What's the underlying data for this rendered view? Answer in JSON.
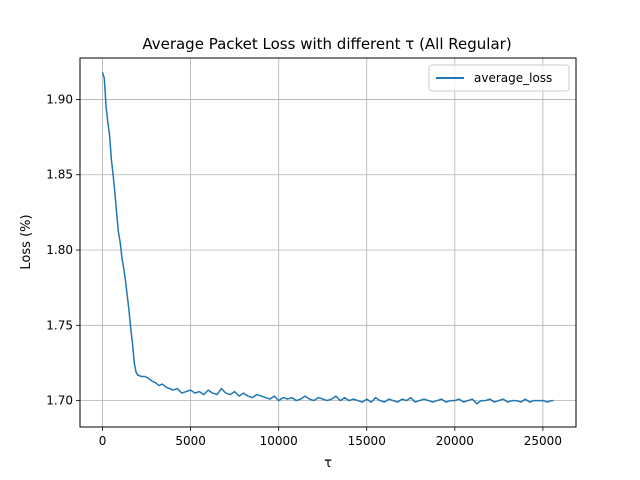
{
  "chart_data": {
    "type": "line",
    "title": "Average Packet Loss with different τ (All Regular)",
    "xlabel": "τ",
    "ylabel": "Loss (%)",
    "xlim": [
      -1280,
      26880
    ],
    "ylim": [
      1.6825,
      1.9275
    ],
    "x_ticks": [
      0,
      5000,
      10000,
      15000,
      20000,
      25000
    ],
    "x_tick_labels": [
      "0",
      "5000",
      "10000",
      "15000",
      "20000",
      "25000"
    ],
    "y_ticks": [
      1.7,
      1.75,
      1.8,
      1.85,
      1.9
    ],
    "y_tick_labels": [
      "1.70",
      "1.75",
      "1.80",
      "1.85",
      "1.90"
    ],
    "grid": true,
    "legend": "top-right",
    "series": [
      {
        "name": "average_loss",
        "color": "#1f77b4",
        "x": [
          0,
          100,
          200,
          300,
          400,
          500,
          600,
          700,
          800,
          900,
          1000,
          1100,
          1200,
          1300,
          1400,
          1500,
          1600,
          1700,
          1800,
          1900,
          2000,
          2200,
          2400,
          2600,
          2800,
          3000,
          3200,
          3400,
          3600,
          3800,
          4000,
          4250,
          4500,
          4750,
          5000,
          5250,
          5500,
          5750,
          6000,
          6250,
          6500,
          6750,
          7000,
          7250,
          7500,
          7750,
          8000,
          8250,
          8500,
          8750,
          9000,
          9250,
          9500,
          9750,
          10000,
          10250,
          10500,
          10750,
          11000,
          11250,
          11500,
          11750,
          12000,
          12250,
          12500,
          12750,
          13000,
          13250,
          13500,
          13750,
          14000,
          14250,
          14500,
          14750,
          15000,
          15250,
          15500,
          15750,
          16000,
          16250,
          16500,
          16750,
          17000,
          17250,
          17500,
          17750,
          18000,
          18250,
          18500,
          18750,
          19000,
          19250,
          19500,
          19750,
          20000,
          20250,
          20500,
          20750,
          21000,
          21250,
          21500,
          21750,
          22000,
          22250,
          22500,
          22750,
          23000,
          23250,
          23500,
          23750,
          24000,
          24250,
          24500,
          24750,
          25000,
          25250,
          25500,
          25600
        ],
        "y": [
          1.918,
          1.914,
          1.895,
          1.885,
          1.876,
          1.86,
          1.85,
          1.838,
          1.825,
          1.812,
          1.805,
          1.795,
          1.788,
          1.78,
          1.77,
          1.76,
          1.748,
          1.738,
          1.725,
          1.719,
          1.717,
          1.716,
          1.716,
          1.715,
          1.713,
          1.712,
          1.71,
          1.711,
          1.709,
          1.708,
          1.707,
          1.708,
          1.705,
          1.706,
          1.707,
          1.705,
          1.706,
          1.704,
          1.707,
          1.705,
          1.704,
          1.708,
          1.705,
          1.704,
          1.706,
          1.703,
          1.705,
          1.703,
          1.702,
          1.704,
          1.703,
          1.702,
          1.701,
          1.703,
          1.7,
          1.702,
          1.701,
          1.702,
          1.7,
          1.701,
          1.703,
          1.701,
          1.7,
          1.702,
          1.701,
          1.7,
          1.701,
          1.703,
          1.7,
          1.702,
          1.7,
          1.701,
          1.7,
          1.699,
          1.701,
          1.699,
          1.702,
          1.7,
          1.699,
          1.701,
          1.7,
          1.699,
          1.701,
          1.7,
          1.702,
          1.699,
          1.7,
          1.701,
          1.7,
          1.699,
          1.7,
          1.701,
          1.699,
          1.7,
          1.7,
          1.701,
          1.699,
          1.7,
          1.701,
          1.698,
          1.7,
          1.7,
          1.701,
          1.699,
          1.7,
          1.701,
          1.699,
          1.7,
          1.7,
          1.699,
          1.701,
          1.699,
          1.7,
          1.7,
          1.7,
          1.699,
          1.7,
          1.7
        ]
      }
    ]
  }
}
